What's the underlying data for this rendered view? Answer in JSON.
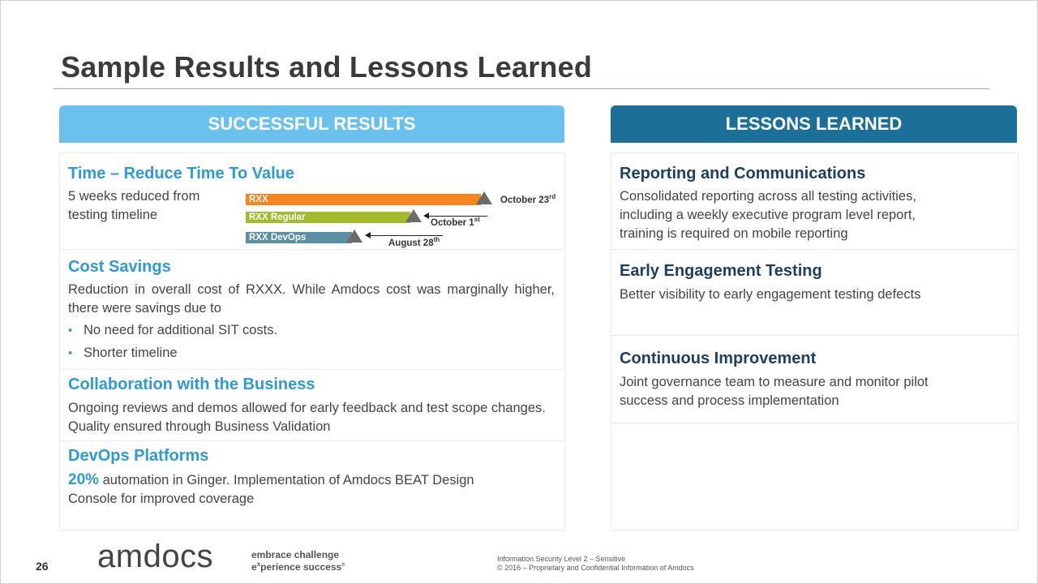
{
  "slide": {
    "title": "Sample Results and Lessons Learned",
    "page_number": "26"
  },
  "left": {
    "header": "SUCCESSFUL RESULTS",
    "time": {
      "heading": "Time – Reduce Time To Value",
      "text_line1": "5 weeks reduced from",
      "text_line2": "testing timeline",
      "bars": [
        {
          "label": "RXX",
          "color": "#f7851e",
          "milestone": "October 23",
          "sup": "rd"
        },
        {
          "label": "RXX  Regular",
          "color": "#a4ba2b",
          "milestone": "October 1",
          "sup": "st"
        },
        {
          "label": "RXX DevOps",
          "color": "#5a8fa6",
          "milestone": "August 28",
          "sup": "th"
        }
      ]
    },
    "cost": {
      "heading": "Cost Savings",
      "text": "Reduction in overall cost of RXXX. While Amdocs cost was marginally higher, there were savings due to",
      "bullets": [
        "No need for additional SIT costs.",
        "Shorter timeline"
      ]
    },
    "collab": {
      "heading": "Collaboration with the Business",
      "text": "Ongoing reviews and demos allowed for early feedback and test scope changes. Quality ensured through Business Validation"
    },
    "devops": {
      "heading": "DevOps Platforms",
      "percent": "20%",
      "text_line1": " automation in Ginger.  Implementation of Amdocs BEAT Design",
      "text_line2": "Console for improved coverage"
    }
  },
  "right": {
    "header": "LESSONS LEARNED",
    "items": [
      {
        "heading": "Reporting and Communications",
        "line1": "Consolidated reporting across all testing activities,",
        "line2": "including a weekly executive program level report,",
        "line3": "training is required on mobile reporting"
      },
      {
        "heading": "Early Engagement Testing",
        "line1": "Better visibility to early engagement testing defects"
      },
      {
        "heading": "Continuous Improvement",
        "line1": "Joint governance team to measure and monitor pilot",
        "line2": "success and process implementation"
      }
    ]
  },
  "footer": {
    "logo": "amdocs",
    "tagline1": "embrace challenge",
    "tagline2_e": "e",
    "tagline2_x": "x",
    "tagline2_rest": "perience success",
    "tagline_mark": "®",
    "legal1": "Information Security Level 2 – Sensitive",
    "legal2": "© 2016 – Proprietary and Confidential Information of Amdocs"
  }
}
